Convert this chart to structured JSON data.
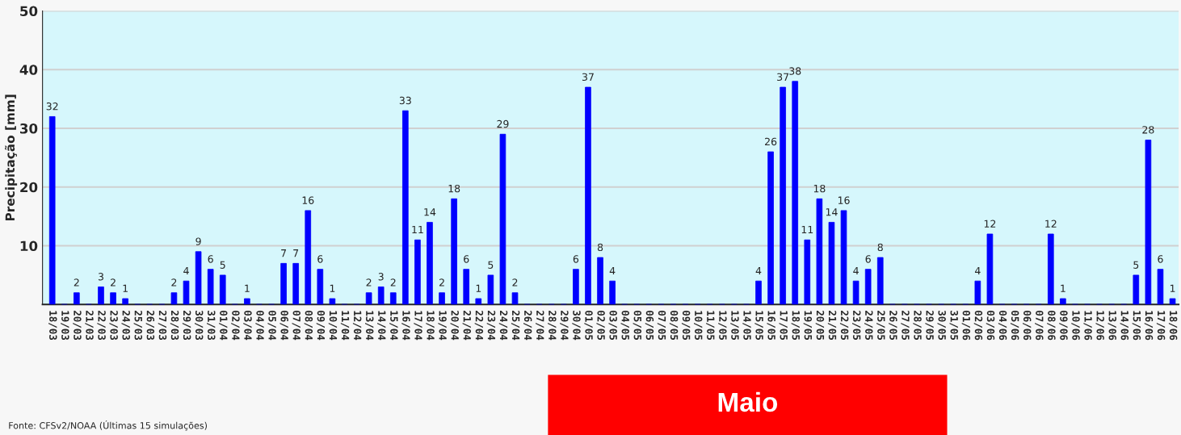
{
  "chart_data": {
    "type": "bar",
    "ylabel": "Precipitação [mm]",
    "categories": [
      "18/03",
      "19/03",
      "20/03",
      "21/03",
      "22/03",
      "23/03",
      "24/03",
      "25/03",
      "26/03",
      "27/03",
      "28/03",
      "29/03",
      "30/03",
      "31/03",
      "01/04",
      "02/04",
      "03/04",
      "04/04",
      "05/04",
      "06/04",
      "07/04",
      "08/04",
      "09/04",
      "10/04",
      "11/04",
      "12/04",
      "13/04",
      "14/04",
      "15/04",
      "16/04",
      "17/04",
      "18/04",
      "19/04",
      "20/04",
      "21/04",
      "22/04",
      "23/04",
      "24/04",
      "25/04",
      "26/04",
      "27/04",
      "28/04",
      "29/04",
      "30/04",
      "01/05",
      "02/05",
      "03/05",
      "04/05",
      "05/05",
      "06/05",
      "07/05",
      "08/05",
      "09/05",
      "10/05",
      "11/05",
      "12/05",
      "13/05",
      "14/05",
      "15/05",
      "16/05",
      "17/05",
      "18/05",
      "19/05",
      "20/05",
      "21/05",
      "22/05",
      "23/05",
      "24/05",
      "25/05",
      "26/05",
      "27/05",
      "28/05",
      "29/05",
      "30/05",
      "31/05",
      "01/06",
      "02/06",
      "03/06",
      "04/06",
      "05/06",
      "06/06",
      "07/06",
      "08/06",
      "09/06",
      "10/06",
      "11/06",
      "12/06",
      "13/06",
      "14/06",
      "15/06",
      "16/06",
      "17/06",
      "18/06"
    ],
    "values": [
      32,
      0,
      2,
      0,
      3,
      2,
      1,
      0,
      0,
      0,
      2,
      4,
      9,
      6,
      5,
      0,
      1,
      0,
      0,
      7,
      7,
      16,
      6,
      1,
      0,
      0,
      2,
      3,
      2,
      33,
      11,
      14,
      2,
      18,
      6,
      1,
      5,
      29,
      2,
      0,
      0,
      0,
      0,
      6,
      37,
      8,
      4,
      0,
      0,
      0,
      0,
      0,
      0,
      0,
      0,
      0,
      0,
      0,
      4,
      26,
      37,
      38,
      11,
      18,
      14,
      16,
      4,
      6,
      8,
      0,
      0,
      0,
      0,
      0,
      0,
      0,
      4,
      12,
      0,
      0,
      0,
      0,
      12,
      1,
      0,
      0,
      0,
      0,
      0,
      5,
      28,
      6,
      1
    ],
    "value_labels": [
      "32",
      null,
      "2",
      null,
      "3",
      "2",
      "1",
      null,
      null,
      null,
      "2",
      "4",
      "9",
      "6",
      "5",
      null,
      "1",
      null,
      null,
      "7",
      "7",
      "16",
      "6",
      "1",
      null,
      null,
      "2",
      "3",
      "2",
      "33",
      "11",
      "14",
      "2",
      "18",
      "6",
      "1",
      "5",
      "29",
      "2",
      null,
      null,
      null,
      null,
      "6",
      "37",
      "8",
      "4",
      null,
      null,
      null,
      null,
      null,
      null,
      null,
      null,
      null,
      null,
      null,
      "4",
      "26",
      "37",
      "38",
      "11",
      "18",
      "14",
      "16",
      "4",
      "6",
      "8",
      null,
      null,
      null,
      null,
      null,
      null,
      null,
      "4",
      "12",
      null,
      null,
      null,
      null,
      "12",
      "1",
      null,
      null,
      null,
      null,
      null,
      "5",
      "28",
      "6",
      "1"
    ],
    "color": "#0000ff",
    "ylim": [
      0,
      50
    ],
    "yticks": [
      10,
      20,
      30,
      40,
      50
    ],
    "grid": "y",
    "legend": false,
    "annotations": [
      "Maio",
      "Fonte: CFSv2/NOAA (Últimas 15 simulações)"
    ]
  }
}
